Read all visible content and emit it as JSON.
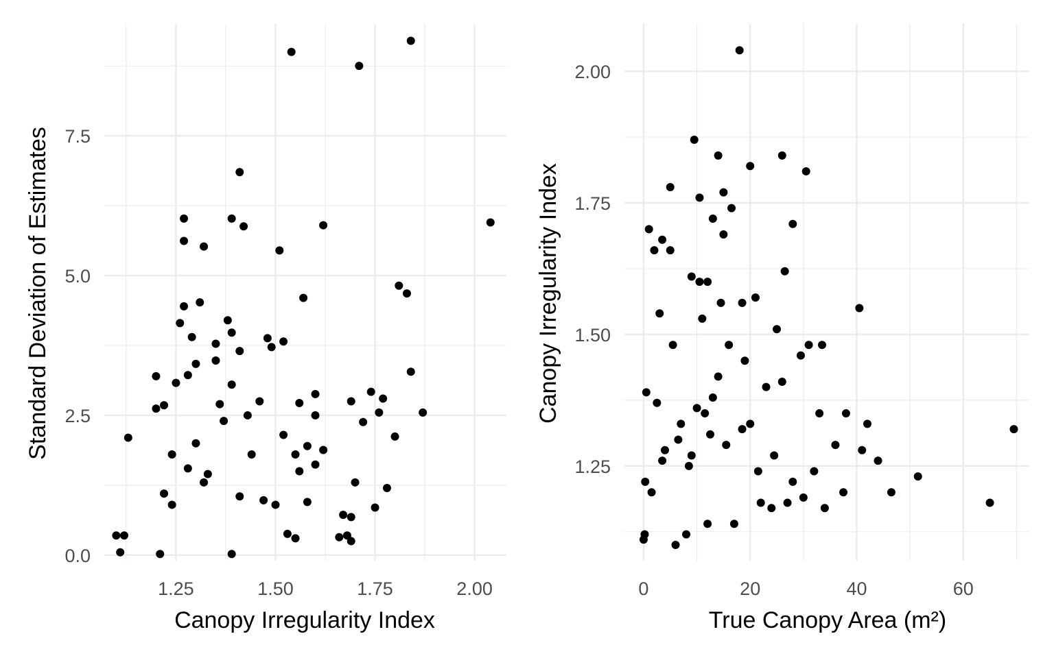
{
  "chart_data": [
    {
      "type": "scatter",
      "xlabel": "Canopy Irregularity Index",
      "ylabel": "Standard Deviation of Estimates",
      "xlim": [
        1.07,
        2.08
      ],
      "ylim": [
        -0.1,
        9.5
      ],
      "x_ticks": [
        1.25,
        1.5,
        1.75,
        2.0
      ],
      "x_tick_labels": [
        "1.25",
        "1.50",
        "1.75",
        "2.00"
      ],
      "y_ticks": [
        0.0,
        2.5,
        5.0,
        7.5
      ],
      "y_tick_labels": [
        "0.0",
        "2.5",
        "5.0",
        "7.5"
      ],
      "grid": true,
      "point_color": "#000000",
      "series": [
        {
          "x": [
            1.54,
            1.84,
            1.71,
            2.04,
            1.41,
            1.27,
            1.39,
            1.42,
            1.62,
            1.27,
            1.32,
            1.51,
            1.81,
            1.83,
            1.57,
            1.27,
            1.31,
            1.26,
            1.38,
            1.39,
            1.48,
            1.29,
            1.35,
            1.52,
            1.41,
            1.49,
            1.2,
            1.35,
            1.3,
            1.84,
            1.28,
            1.25,
            1.39,
            1.74,
            1.6,
            1.77,
            1.56,
            1.69,
            1.22,
            1.2,
            1.72,
            1.76,
            1.87,
            1.6,
            1.8,
            1.13,
            1.62,
            1.6,
            1.7,
            1.78,
            1.58,
            1.52,
            1.55,
            1.56,
            1.69,
            1.67,
            1.58,
            1.5,
            1.75,
            1.68,
            1.53,
            1.66,
            1.69,
            1.47,
            1.41,
            1.33,
            1.28,
            1.24,
            1.46,
            1.55,
            1.11,
            1.12,
            1.1,
            1.39,
            1.21,
            1.44,
            1.43,
            1.37,
            1.36,
            1.3,
            1.32,
            1.22,
            1.24
          ],
          "y": [
            9.0,
            9.2,
            8.75,
            5.95,
            6.85,
            6.02,
            6.02,
            5.88,
            5.9,
            5.62,
            5.52,
            5.45,
            4.82,
            4.68,
            4.6,
            4.45,
            4.52,
            4.15,
            4.2,
            3.98,
            3.88,
            3.9,
            3.78,
            3.82,
            3.65,
            3.72,
            3.2,
            3.48,
            3.42,
            3.28,
            3.22,
            3.08,
            3.05,
            2.92,
            2.88,
            2.8,
            2.72,
            2.75,
            2.68,
            2.62,
            2.38,
            2.55,
            2.55,
            2.5,
            2.12,
            2.1,
            1.88,
            1.62,
            1.3,
            1.2,
            1.95,
            2.15,
            1.8,
            1.5,
            0.68,
            0.72,
            0.95,
            0.9,
            0.85,
            0.35,
            0.38,
            0.32,
            0.25,
            0.98,
            1.05,
            1.45,
            1.55,
            1.8,
            2.75,
            0.3,
            0.05,
            0.35,
            0.35,
            0.02,
            0.02,
            1.8,
            2.5,
            2.4,
            2.7,
            2.0,
            1.3,
            1.1,
            0.9
          ]
        }
      ]
    },
    {
      "type": "scatter",
      "xlabel": "True Canopy Area (m²)",
      "ylabel": "Canopy Irregularity Index",
      "xlim": [
        -3.6,
        72.4
      ],
      "ylim": [
        1.07,
        2.09
      ],
      "x_ticks": [
        0,
        20,
        40,
        60
      ],
      "x_tick_labels": [
        "0",
        "20",
        "40",
        "60"
      ],
      "y_ticks": [
        1.25,
        1.5,
        1.75,
        2.0
      ],
      "y_tick_labels": [
        "1.25",
        "1.50",
        "1.75",
        "2.00"
      ],
      "grid": true,
      "point_color": "#000000",
      "series": [
        {
          "x": [
            18,
            9.5,
            14,
            26,
            20,
            30.5,
            5,
            15,
            10.5,
            16.5,
            13,
            28,
            1,
            3.5,
            2,
            5,
            15,
            26.5,
            40.5,
            9,
            12,
            10.5,
            14.5,
            18.5,
            21,
            29.5,
            25,
            31,
            33.5,
            38,
            42,
            44,
            46.5,
            51.5,
            65,
            69.5,
            0,
            0.2,
            6,
            8,
            12,
            17,
            34,
            36,
            22,
            24,
            27,
            30,
            0.5,
            2.5,
            8.5,
            3,
            5.5,
            11,
            16,
            19,
            23,
            26,
            14,
            10,
            7,
            4,
            6.5,
            9,
            12.5,
            15.5,
            18.5,
            21.5,
            28,
            32,
            24.5,
            0.3,
            1.5,
            3.5,
            11.5,
            13,
            20,
            33,
            37.5,
            41
          ],
          "y": [
            2.04,
            1.87,
            1.84,
            1.84,
            1.82,
            1.81,
            1.78,
            1.77,
            1.76,
            1.74,
            1.72,
            1.71,
            1.7,
            1.68,
            1.66,
            1.66,
            1.69,
            1.62,
            1.55,
            1.61,
            1.6,
            1.6,
            1.56,
            1.56,
            1.57,
            1.46,
            1.51,
            1.48,
            1.48,
            1.35,
            1.33,
            1.26,
            1.2,
            1.23,
            1.18,
            1.32,
            1.11,
            1.12,
            1.1,
            1.12,
            1.14,
            1.14,
            1.17,
            1.29,
            1.18,
            1.17,
            1.18,
            1.19,
            1.39,
            1.37,
            1.25,
            1.54,
            1.48,
            1.53,
            1.48,
            1.45,
            1.4,
            1.41,
            1.42,
            1.36,
            1.33,
            1.28,
            1.3,
            1.27,
            1.31,
            1.29,
            1.32,
            1.24,
            1.22,
            1.24,
            1.27,
            1.22,
            1.2,
            1.26,
            1.35,
            1.38,
            1.33,
            1.35,
            1.2,
            1.28
          ]
        }
      ]
    }
  ]
}
